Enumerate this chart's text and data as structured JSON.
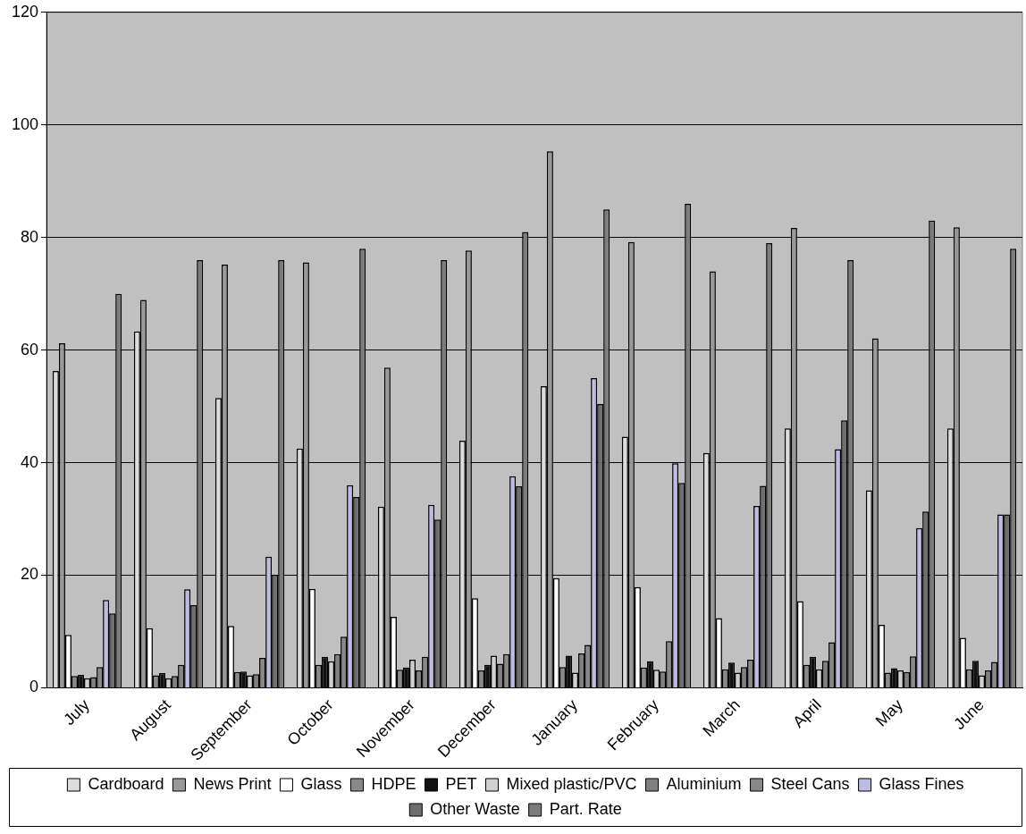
{
  "chart_data": {
    "type": "bar",
    "categories": [
      "July",
      "August",
      "September",
      "October",
      "November",
      "December",
      "January",
      "February",
      "March",
      "April",
      "May",
      "June"
    ],
    "series": [
      {
        "name": "Cardboard",
        "color": "#dcdcdc",
        "values": [
          56.3,
          63.3,
          51.5,
          42.5,
          32.2,
          43.9,
          53.6,
          44.6,
          41.7,
          46.1,
          35.1,
          46.1
        ]
      },
      {
        "name": "News Print",
        "color": "#999999",
        "values": [
          61.2,
          68.9,
          75.2,
          75.6,
          56.9,
          77.7,
          95.3,
          79.2,
          74,
          81.7,
          62.1,
          81.8
        ]
      },
      {
        "name": "Glass",
        "color": "#ffffff",
        "values": [
          9.4,
          10.6,
          11,
          17.6,
          12.6,
          15.9,
          19.5,
          17.9,
          12.4,
          15.4,
          11.2,
          8.9
        ]
      },
      {
        "name": "HDPE",
        "color": "#8a8a8a",
        "values": [
          2.1,
          2.2,
          2.8,
          4.1,
          3.2,
          3.1,
          3.7,
          3.6,
          3.3,
          4.1,
          2.7,
          3.3
        ]
      },
      {
        "name": "PET",
        "color": "#111111",
        "values": [
          2.3,
          2.6,
          2.9,
          5.5,
          3.6,
          4.1,
          5.7,
          4.7,
          4.5,
          5.5,
          3.5,
          4.8
        ]
      },
      {
        "name": "Mixed plastic/PVC",
        "color": "#d0d0d0",
        "values": [
          1.7,
          1.7,
          2.2,
          4.7,
          5,
          5.7,
          2.7,
          3.2,
          2.7,
          3.3,
          3.1,
          2.2
        ]
      },
      {
        "name": "Aluminium",
        "color": "#808080",
        "values": [
          1.9,
          2.1,
          2.4,
          6,
          3.1,
          4.3,
          6.1,
          2.9,
          3.7,
          4.8,
          2.8,
          3.1
        ]
      },
      {
        "name": "Steel Cans",
        "color": "#888888",
        "values": [
          3.7,
          4.1,
          5.3,
          9.1,
          5.5,
          6,
          7.6,
          8.3,
          5,
          8.1,
          5.6,
          4.6
        ]
      },
      {
        "name": "Glass Fines",
        "color": "#bcbce4",
        "values": [
          15.6,
          17.5,
          23.3,
          36,
          32.5,
          37.6,
          55,
          39.9,
          32.3,
          42.4,
          28.4,
          30.8
        ]
      },
      {
        "name": "Other Waste",
        "color": "#6e6e6e",
        "values": [
          13.2,
          14.7,
          20.1,
          33.9,
          29.9,
          35.8,
          50.4,
          36.4,
          35.9,
          47.5,
          31.3,
          30.8
        ]
      },
      {
        "name": "Part. Rate",
        "color": "#7c7c7c",
        "values": [
          70,
          76,
          76,
          78,
          76,
          81,
          85,
          86,
          79,
          76,
          83,
          78
        ]
      }
    ],
    "ylim": [
      0,
      120
    ],
    "yticks": [
      0,
      20,
      40,
      60,
      80,
      100,
      120
    ],
    "grid": "y",
    "legend": "bottom"
  }
}
